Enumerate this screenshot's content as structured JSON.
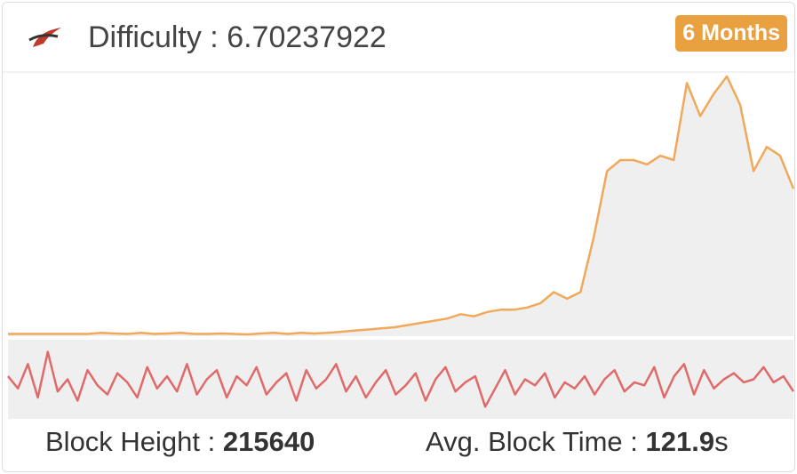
{
  "header": {
    "label": "Difficulty : 6.70237922",
    "button": "6 Months"
  },
  "footer": {
    "height_label": "Block Height : ",
    "height_value": "215640",
    "time_label": "Avg. Block Time : ",
    "time_value": "121.9",
    "time_unit": "s"
  },
  "chart_data": [
    {
      "type": "area",
      "color": "#f0a95a",
      "fill": "#efefef",
      "ylim": [
        0,
        12
      ],
      "values": [
        0.1,
        0.1,
        0.1,
        0.1,
        0.1,
        0.1,
        0.1,
        0.15,
        0.12,
        0.1,
        0.15,
        0.1,
        0.12,
        0.15,
        0.1,
        0.1,
        0.12,
        0.1,
        0.08,
        0.12,
        0.15,
        0.1,
        0.15,
        0.12,
        0.15,
        0.2,
        0.25,
        0.3,
        0.35,
        0.4,
        0.5,
        0.6,
        0.7,
        0.8,
        1.0,
        0.9,
        1.1,
        1.2,
        1.2,
        1.3,
        1.5,
        2.0,
        1.7,
        2.0,
        4.5,
        7.5,
        8.0,
        8.0,
        7.8,
        8.2,
        8.0,
        11.5,
        10.0,
        11.0,
        11.8,
        10.5,
        7.5,
        8.6,
        8.2,
        6.7
      ]
    },
    {
      "type": "line",
      "color": "#e06a6a",
      "fill": "#efefef",
      "ylim": [
        60,
        190
      ],
      "values": [
        130,
        110,
        150,
        95,
        170,
        105,
        125,
        90,
        140,
        115,
        100,
        135,
        120,
        95,
        145,
        110,
        130,
        105,
        150,
        100,
        125,
        140,
        95,
        130,
        115,
        145,
        100,
        120,
        135,
        90,
        140,
        110,
        125,
        150,
        105,
        130,
        95,
        120,
        140,
        100,
        115,
        135,
        90,
        125,
        145,
        105,
        120,
        130,
        80,
        110,
        140,
        100,
        125,
        115,
        135,
        95,
        120,
        110,
        130,
        100,
        125,
        140,
        105,
        120,
        115,
        145,
        95,
        130,
        150,
        100,
        140,
        110,
        125,
        135,
        120,
        125,
        145,
        120,
        130,
        105
      ]
    }
  ]
}
